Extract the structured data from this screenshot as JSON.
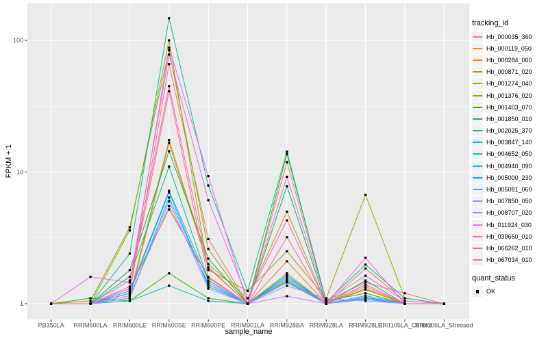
{
  "figure": {
    "xlabel": "sample_name",
    "ylabel": "FPKM + 1"
  },
  "legend": {
    "title": "tracking_id",
    "quant_title": "quant_status",
    "quant_items": [
      {
        "label": "OK",
        "marker": "filled-square",
        "color": "#000000"
      }
    ]
  },
  "chart_data": {
    "type": "line",
    "title": "",
    "xlabel": "sample_name",
    "ylabel": "FPKM + 1",
    "x_type": "categorical",
    "y_scale": "log10",
    "ylim": [
      0.76,
      190
    ],
    "y_ticks": [
      1,
      10,
      100
    ],
    "y_minor_ticks": [
      3.162,
      31.62
    ],
    "grid": "on",
    "legend_position": "right",
    "marker": "filled-square",
    "marker_color": "#000000",
    "panel_bg": "#EBEBEB",
    "grid_color": "#FFFFFF",
    "tick_label_color": "#4D4D4D",
    "categories": [
      "PB350LA",
      "RRIM600LA",
      "RRIM600LE",
      "RRIM600SE",
      "RRIM600PE",
      "RRIM901LA",
      "RRIM928BA",
      "RRIM928LA",
      "RRIM928LE",
      "RRII105LA_Control",
      "RRII105LA_Stressed"
    ],
    "series": [
      {
        "name": "Hb_000035_360",
        "color": "#F8766D",
        "values": [
          1,
          1,
          1.2,
          66,
          3.1,
          1,
          11.9,
          1.05,
          1.45,
          1.2,
          1
        ]
      },
      {
        "name": "Hb_000119_050",
        "color": "#EA8331",
        "values": [
          1,
          1,
          1.1,
          16.6,
          1.9,
          1,
          2.1,
          1,
          1.85,
          1.05,
          1
        ]
      },
      {
        "name": "Hb_000284_060",
        "color": "#D89000",
        "values": [
          1,
          1,
          1.3,
          5.2,
          1.6,
          1,
          1.7,
          1,
          1.3,
          1,
          1
        ]
      },
      {
        "name": "Hb_000871_020",
        "color": "#C09B00",
        "values": [
          1,
          1,
          1.15,
          17.5,
          2.0,
          1.1,
          5.0,
          1,
          1.28,
          1,
          1
        ]
      },
      {
        "name": "Hb_001274_040",
        "color": "#A3A500",
        "values": [
          1,
          1,
          3.6,
          100,
          1.8,
          1.25,
          2.5,
          1.1,
          6.7,
          1.1,
          1
        ]
      },
      {
        "name": "Hb_001376_020",
        "color": "#7CAE00",
        "values": [
          1,
          1.05,
          3.8,
          84,
          2.6,
          1,
          1.6,
          1,
          1.1,
          1,
          1
        ]
      },
      {
        "name": "Hb_001403_070",
        "color": "#39B600",
        "values": [
          1,
          1.1,
          1.05,
          1.7,
          1.1,
          1,
          13.7,
          1.05,
          1.2,
          1,
          1
        ]
      },
      {
        "name": "Hb_001850_010",
        "color": "#00BB4E",
        "values": [
          1,
          1,
          1.8,
          14.4,
          2.2,
          1,
          7.8,
          1,
          1.5,
          1,
          1
        ]
      },
      {
        "name": "Hb_002025_370",
        "color": "#00BF7D",
        "values": [
          1,
          1,
          1.6,
          11,
          1.5,
          1,
          1.5,
          1,
          1.1,
          1,
          1
        ]
      },
      {
        "name": "Hb_003847_140",
        "color": "#00C1A3",
        "values": [
          1,
          1,
          2.4,
          147,
          7.9,
          1.25,
          14.3,
          1.03,
          1.98,
          1.1,
          1
        ]
      },
      {
        "name": "Hb_004652_050",
        "color": "#00BFC4",
        "values": [
          1,
          1,
          1.05,
          1.37,
          1.05,
          1,
          1.45,
          1,
          1.1,
          1,
          1
        ]
      },
      {
        "name": "Hb_004940_090",
        "color": "#00BAE0",
        "values": [
          1,
          1,
          1.1,
          6.4,
          1.4,
          1,
          1.6,
          1,
          1.12,
          1,
          1
        ]
      },
      {
        "name": "Hb_005000_230",
        "color": "#00B0F6",
        "values": [
          1,
          1,
          1.2,
          7.0,
          1.35,
          1,
          1.55,
          1,
          1.08,
          1,
          1
        ]
      },
      {
        "name": "Hb_005081_060",
        "color": "#35A2FF",
        "values": [
          1,
          1,
          1.25,
          7.2,
          1.5,
          1,
          1.65,
          1,
          1.15,
          1,
          1
        ]
      },
      {
        "name": "Hb_007850_050",
        "color": "#9590FF",
        "values": [
          1,
          1,
          1.1,
          6.0,
          1.3,
          1,
          1.37,
          1.09,
          1.05,
          1,
          1
        ]
      },
      {
        "name": "Hb_008707_020",
        "color": "#C77CFF",
        "values": [
          1,
          1,
          1.15,
          5.5,
          1.45,
          1,
          1.14,
          1,
          1.1,
          1,
          1
        ]
      },
      {
        "name": "Hb_011924_030",
        "color": "#E76BF3",
        "values": [
          1,
          1,
          1.3,
          88,
          9.3,
          1,
          9.2,
          1.05,
          1.63,
          1.05,
          1
        ]
      },
      {
        "name": "Hb_039650_010",
        "color": "#FA62DB",
        "values": [
          1,
          1.6,
          1.45,
          78,
          6.1,
          1.1,
          4.3,
          1,
          2.23,
          1,
          1
        ]
      },
      {
        "name": "Hb_066262_010",
        "color": "#FF62BC",
        "values": [
          1,
          1,
          1.5,
          45,
          1.87,
          1,
          3.2,
          1,
          1.4,
          1,
          1
        ]
      },
      {
        "name": "Hb_067034_010",
        "color": "#FF6A98",
        "values": [
          1,
          1,
          1.35,
          41,
          1.57,
          1,
          1.48,
          1,
          1.35,
          1,
          1
        ]
      }
    ]
  }
}
